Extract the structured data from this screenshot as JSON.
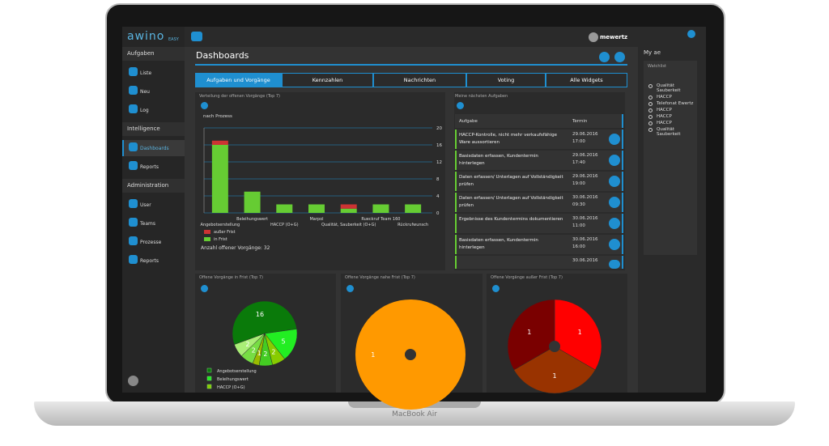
{
  "device_label": "MacBook Air",
  "logo": {
    "name": "awino",
    "edition": "EASY"
  },
  "user": "mewertz",
  "sidebar": [
    {
      "title": "Aufgaben",
      "items": [
        "Liste",
        "Neu",
        "Log"
      ]
    },
    {
      "title": "Intelligence",
      "items": [
        "Dashboards",
        "Reports"
      ]
    },
    {
      "title": "Administration",
      "items": [
        "User",
        "Teams",
        "Prozesse",
        "Reports"
      ]
    }
  ],
  "page_title": "Dashboards",
  "tabs": [
    "Aufgaben und Vorgänge",
    "Kennzahlen",
    "Nachrichten",
    "Voting",
    "Alle Widgets"
  ],
  "right_panel": {
    "title": "My ae",
    "subtitle": "Watchlist",
    "items": [
      "Qualität Sauberkeit",
      "HACCP",
      "Telefonat Ewertz",
      "HACCP",
      "HACCP",
      "HACCP",
      "Qualität Sauberkeit"
    ]
  },
  "tasks": {
    "title": "Meine nächsten Aufgaben",
    "columns": [
      "Aufgabe",
      "Termin"
    ],
    "rows": [
      {
        "task": "HACCP-Kontrolle, nicht mehr verkaufsfähige Ware aussortieren",
        "date": "29.06.2016",
        "time": "17:00"
      },
      {
        "task": "Basisdaten erfassen, Kundentermin hinterlegen",
        "date": "29.06.2016",
        "time": "17:40"
      },
      {
        "task": "Daten erfassen/ Unterlagen auf Vollständigkeit prüfen",
        "date": "29.06.2016",
        "time": "19:00"
      },
      {
        "task": "Daten erfassen/ Unterlagen auf Vollständigkeit prüfen",
        "date": "30.06.2016",
        "time": "09:30"
      },
      {
        "task": "Ergebnisse des Kundentermins dokumentieren",
        "date": "30.06.2016",
        "time": "11:00"
      },
      {
        "task": "Basisdaten erfassen, Kundentermin hinterlegen",
        "date": "30.06.2016",
        "time": "16:00"
      },
      {
        "date": "30.06.2016"
      }
    ]
  },
  "chart_data": [
    {
      "type": "bar",
      "stacked": true,
      "title": "Verteilung der offenen Vorgänge (Top 7)",
      "selector": "nach Prozess",
      "categories": [
        "Angebotserstellung",
        "Beleihungswert",
        "HACCP (O+G)",
        "Marpol",
        "Qualität, Sauberkeit (O+G)",
        "Rueckruf Team 160",
        "Rückrufwunsch"
      ],
      "series": [
        {
          "name": "in Frist",
          "color": "#66cc33",
          "values": [
            16,
            5,
            2,
            2,
            1,
            2,
            2
          ]
        },
        {
          "name": "außer Frist",
          "color": "#cc3333",
          "values": [
            1,
            0,
            0,
            0,
            1,
            0,
            0
          ]
        }
      ],
      "ylim": [
        0,
        20
      ],
      "yticks": [
        0,
        4,
        8,
        12,
        16,
        20
      ],
      "grid": true,
      "footer": "Anzahl offener Vorgänge: 32"
    },
    {
      "type": "pie",
      "title": "Offene Vorgänge in Frist (Top 7)",
      "categories": [
        "Angebotserstellung",
        "Beleihungswert",
        "HACCP (O+G)",
        null,
        null,
        null,
        null
      ],
      "values": [
        16,
        5,
        2,
        2,
        1,
        2,
        2
      ],
      "colors": [
        "#0a7a0a",
        "#22ee22",
        "#88cc00",
        "#44cc22",
        "#99bb00",
        "#77dd44",
        "#aaee77"
      ]
    },
    {
      "type": "pie",
      "title": "Offene Vorgänge nahe Frist (Top 7)",
      "values": [
        1
      ],
      "colors": [
        "#ff9900"
      ]
    },
    {
      "type": "pie",
      "title": "Offene Vorgänge außer Frist (Top 7)",
      "values": [
        1,
        1,
        1
      ],
      "colors": [
        "#ff0000",
        "#993300",
        "#7a0000"
      ]
    }
  ]
}
